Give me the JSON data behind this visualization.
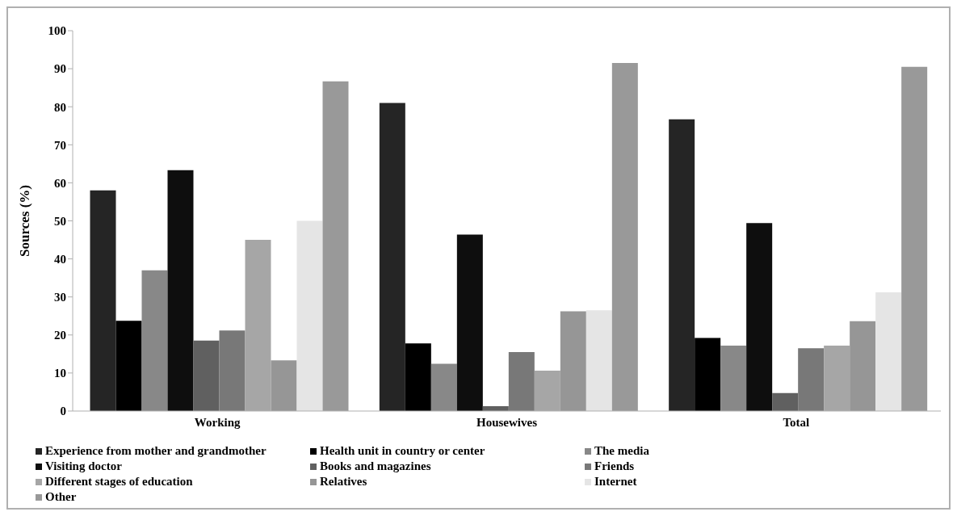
{
  "chart_data": {
    "type": "bar",
    "ylabel": "Sources  (%)",
    "categories": [
      "Working",
      "Housewives",
      "Total"
    ],
    "ylim": [
      0,
      100
    ],
    "yticks": [
      0,
      10,
      20,
      30,
      40,
      50,
      60,
      70,
      80,
      90,
      100
    ],
    "grid": false,
    "legend": "bottom",
    "series": [
      {
        "name": "Experience from mother and grandmother",
        "color": "#252525",
        "values": [
          58,
          81,
          76.7
        ]
      },
      {
        "name": "Health unit in country or center",
        "color": "#000000",
        "values": [
          23.7,
          17.8,
          19.2
        ]
      },
      {
        "name": "The media",
        "color": "#888888",
        "values": [
          37,
          12.4,
          17.2
        ]
      },
      {
        "name": "Visiting doctor",
        "color": "#0e0e0e",
        "values": [
          63.3,
          46.4,
          49.4
        ]
      },
      {
        "name": "Books and magazines",
        "color": "#606060",
        "values": [
          18.5,
          1.3,
          4.7
        ]
      },
      {
        "name": "Friends",
        "color": "#787878",
        "values": [
          21.2,
          15.5,
          16.5
        ]
      },
      {
        "name": "Different stages of education",
        "color": "#a6a6a6",
        "values": [
          45,
          10.6,
          17.2
        ]
      },
      {
        "name": "Relatives",
        "color": "#969696",
        "values": [
          13.3,
          26.2,
          23.6
        ]
      },
      {
        "name": "Internet",
        "color": "#e5e5e5",
        "values": [
          50,
          26.5,
          31.2
        ]
      },
      {
        "name": "Other",
        "color": "#999999",
        "values": [
          86.7,
          91.5,
          90.5
        ]
      }
    ]
  }
}
